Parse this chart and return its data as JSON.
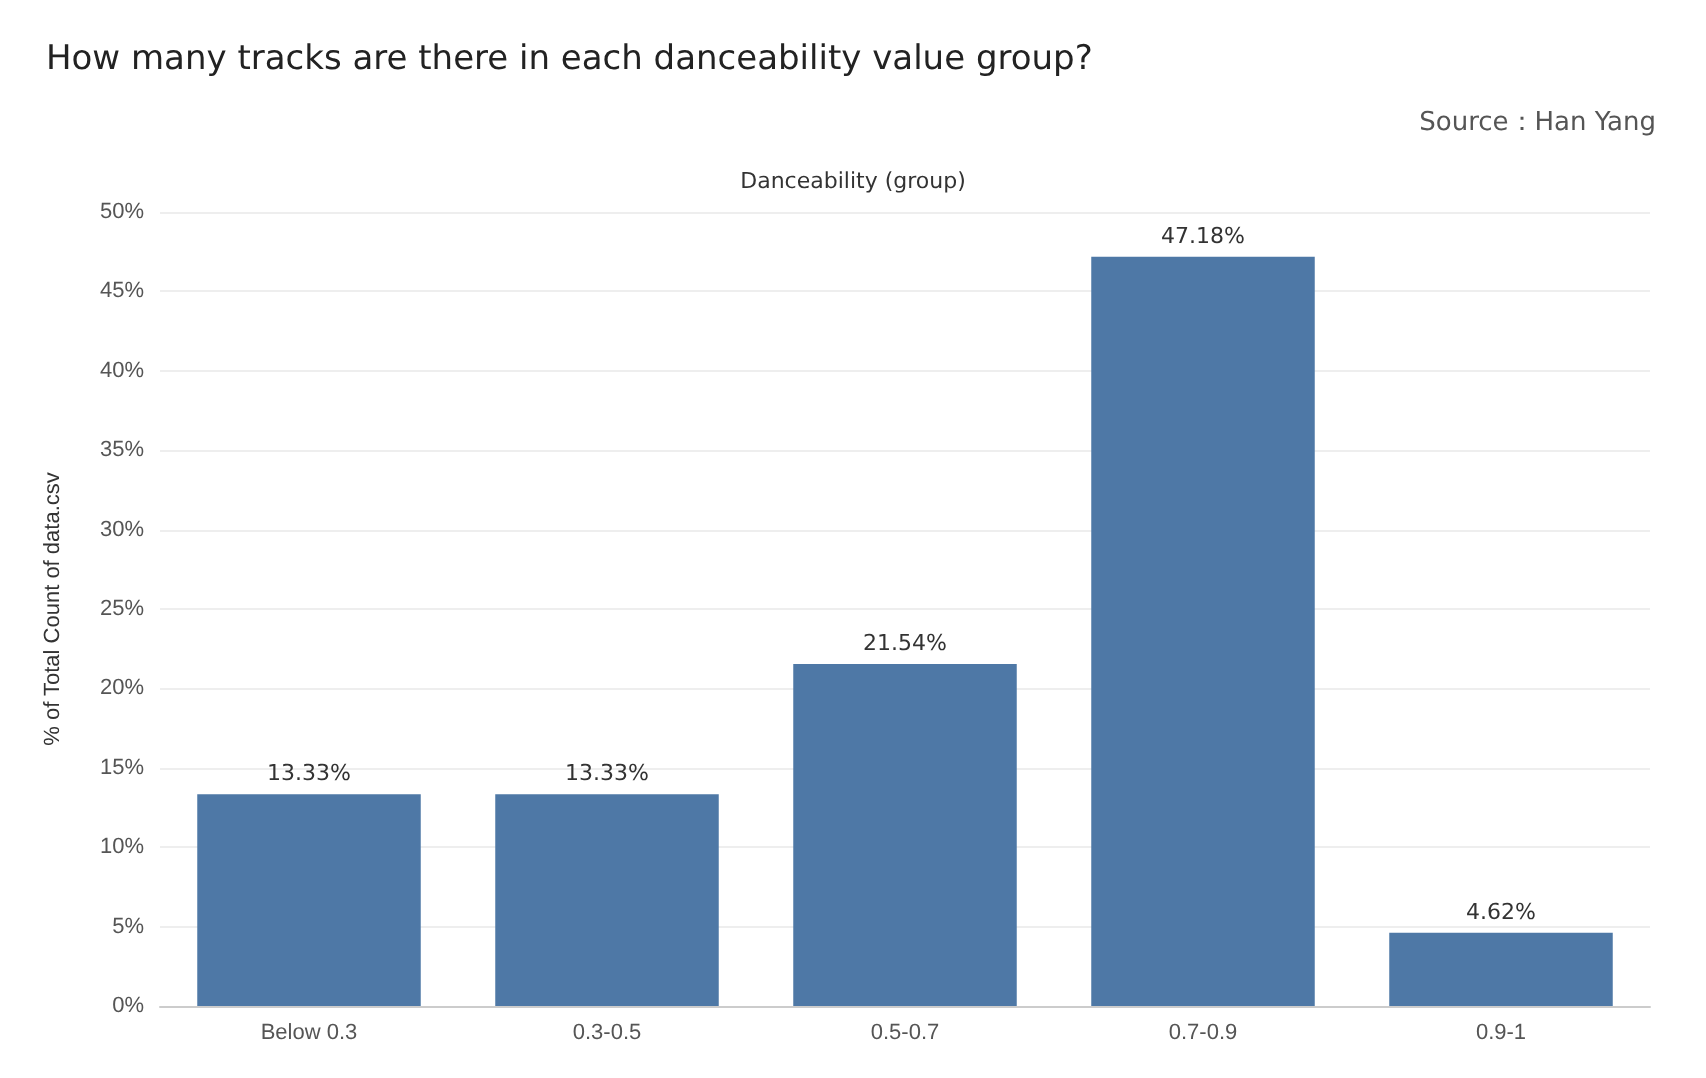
{
  "chart_data": {
    "type": "bar",
    "title": "How many tracks are there in each danceability value group?",
    "annotations": [
      "Source：Han Yang"
    ],
    "xlabel": "Danceability (group)",
    "ylabel": "% of Total Count of data.csv",
    "categories": [
      "Below 0.3",
      "0.3-0.5",
      "0.5-0.7",
      "0.7-0.9",
      "0.9-1"
    ],
    "values": [
      13.33,
      13.33,
      21.54,
      47.18,
      4.62
    ],
    "value_labels": [
      "13.33%",
      "13.33%",
      "21.54%",
      "47.18%",
      "4.62%"
    ],
    "color": "#4e78a6",
    "ylim": [
      0,
      50
    ],
    "yticks": [
      {
        "value": 0,
        "label": "0%"
      },
      {
        "value": 5,
        "label": "5%"
      },
      {
        "value": 10,
        "label": "10%"
      },
      {
        "value": 15,
        "label": "15%"
      },
      {
        "value": 20,
        "label": "20%"
      },
      {
        "value": 25,
        "label": "25%"
      },
      {
        "value": 30,
        "label": "30%"
      },
      {
        "value": 35,
        "label": "35%"
      },
      {
        "value": 40,
        "label": "40%"
      },
      {
        "value": 45,
        "label": "45%"
      },
      {
        "value": 50,
        "label": "50%"
      }
    ],
    "grid": "y"
  }
}
